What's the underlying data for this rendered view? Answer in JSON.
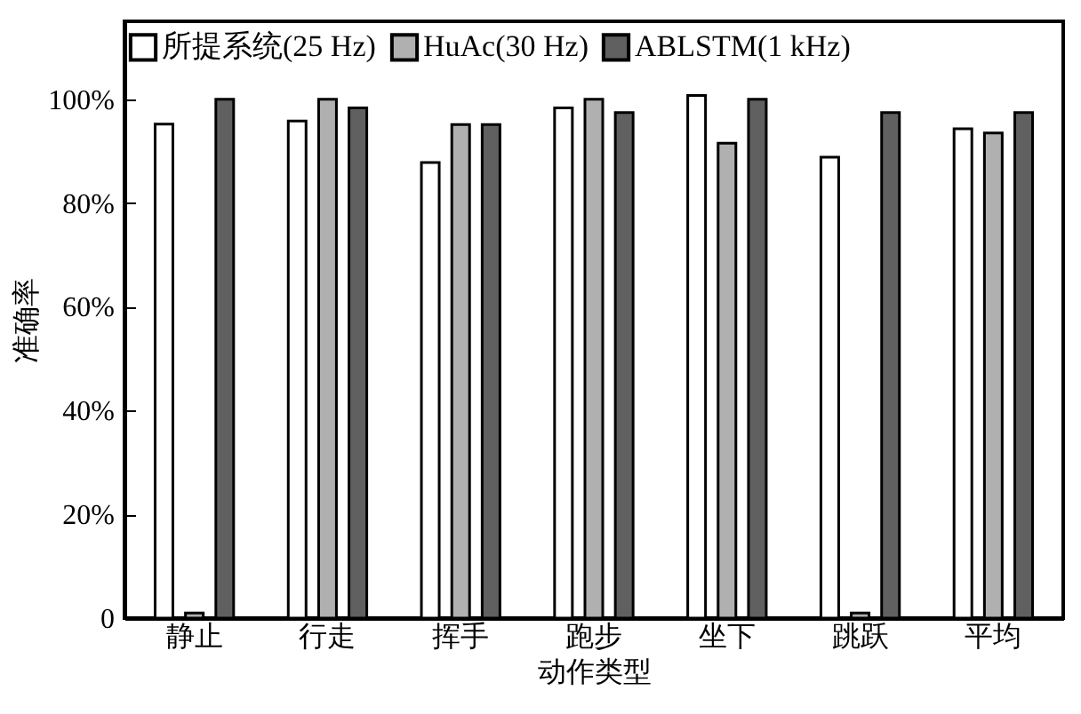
{
  "chart_data": {
    "type": "bar",
    "xlabel": "动作类型",
    "ylabel": "准确率",
    "categories": [
      "静止",
      "行走",
      "挥手",
      "跑步",
      "坐下",
      "跳跃",
      "平均"
    ],
    "series": [
      {
        "name": "所提系统(25 Hz)",
        "color": "#ffffff",
        "values": [
          95.2,
          95.8,
          87.8,
          98.3,
          100.7,
          88.8,
          94.3
        ]
      },
      {
        "name": "HuAc(30 Hz)",
        "color": "#b0b0b0",
        "values": [
          1,
          100,
          95.1,
          100,
          91.5,
          1,
          93.5
        ]
      },
      {
        "name": "ABLSTM(1 kHz)",
        "color": "#606060",
        "values": [
          100,
          98.3,
          95.1,
          97.4,
          100,
          97.4,
          97.4
        ]
      }
    ],
    "ylim": [
      0,
      115
    ],
    "yticks": [
      {
        "value": 0,
        "label": "0"
      },
      {
        "value": 20,
        "label": "20%"
      },
      {
        "value": 40,
        "label": "40%"
      },
      {
        "value": 60,
        "label": "60%"
      },
      {
        "value": 80,
        "label": "80%"
      },
      {
        "value": 100,
        "label": "100%"
      }
    ],
    "grid": false,
    "legend": "top"
  }
}
